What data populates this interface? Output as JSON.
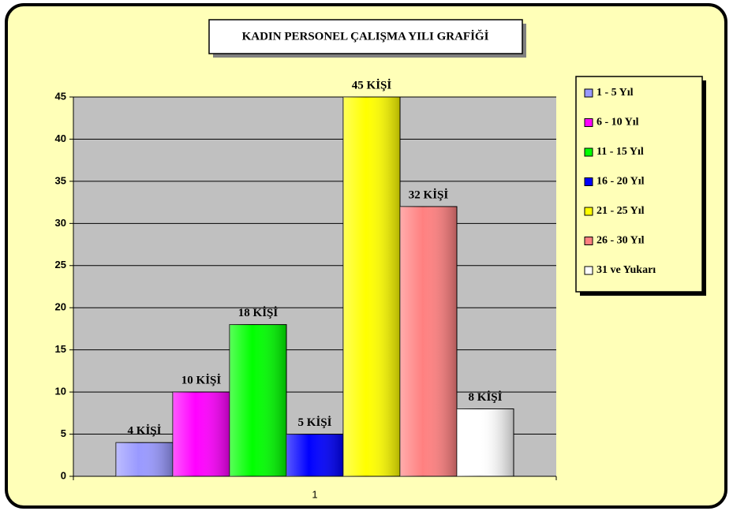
{
  "chart_data": {
    "type": "bar",
    "title": "KADIN PERSONEL ÇALIŞMA YILI GRAFİĞİ",
    "categories": [
      "1"
    ],
    "series": [
      {
        "name": "1 - 5 Yıl",
        "color": "#9999ff",
        "values": [
          4
        ],
        "value_labels": [
          "4 KİŞİ"
        ]
      },
      {
        "name": "6 - 10 Yıl",
        "color": "#ff00ff",
        "values": [
          10
        ],
        "value_labels": [
          "10 KİŞİ"
        ]
      },
      {
        "name": "11 - 15 Yıl",
        "color": "#00ff00",
        "values": [
          18
        ],
        "value_labels": [
          "18 KİŞİ"
        ]
      },
      {
        "name": "16 - 20 Yıl",
        "color": "#0000ff",
        "values": [
          5
        ],
        "value_labels": [
          "5 KİŞİ"
        ]
      },
      {
        "name": "21 - 25 Yıl",
        "color": "#ffff00",
        "values": [
          45
        ],
        "value_labels": [
          "45 KİŞİ"
        ]
      },
      {
        "name": "26 - 30 Yıl",
        "color": "#ff8080",
        "values": [
          32
        ],
        "value_labels": [
          "32 KİŞİ"
        ]
      },
      {
        "name": "31 ve Yukarı",
        "color": "#ffffff",
        "values": [
          8
        ],
        "value_labels": [
          "8 KİŞİ"
        ]
      }
    ],
    "ylim": [
      0,
      45
    ],
    "yticks": [
      0,
      5,
      10,
      15,
      20,
      25,
      30,
      35,
      40,
      45
    ],
    "grid": true,
    "legend": "right"
  }
}
